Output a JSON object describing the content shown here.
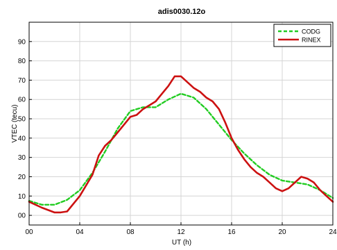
{
  "chart_data": {
    "type": "line",
    "title": "adis0030.12o",
    "xlabel": "UT (h)",
    "ylabel": "VTEC (tecu)",
    "xlim": [
      0,
      24
    ],
    "ylim": [
      -5,
      100
    ],
    "x_ticks": [
      0,
      4,
      8,
      12,
      16,
      20,
      24
    ],
    "x_tick_labels": [
      "00",
      "04",
      "08",
      "12",
      "16",
      "20",
      "24"
    ],
    "y_ticks": [
      0,
      10,
      20,
      30,
      40,
      50,
      60,
      70,
      80,
      90
    ],
    "y_tick_labels": [
      "00",
      "10",
      "20",
      "30",
      "40",
      "50",
      "60",
      "70",
      "80",
      "90"
    ],
    "grid": true,
    "legend_position": "top-right",
    "series": [
      {
        "name": "CODG",
        "color": "#22cc22",
        "style": "dashed",
        "x": [
          0,
          1,
          2,
          3,
          4,
          5,
          6,
          7,
          8,
          9,
          10,
          11,
          12,
          13,
          14,
          15,
          16,
          17,
          18,
          19,
          20,
          21,
          22,
          23,
          24
        ],
        "y": [
          7.5,
          5.5,
          5.5,
          8,
          13,
          22,
          33,
          45,
          54,
          56,
          56,
          60,
          63,
          61,
          55,
          47,
          39,
          32,
          26,
          21,
          18,
          17,
          16,
          13,
          9
        ]
      },
      {
        "name": "RINEX",
        "color": "#cc1111",
        "style": "solid",
        "x": [
          0,
          1,
          2,
          2.5,
          3,
          4,
          5,
          5.5,
          6,
          6.5,
          7,
          7.5,
          8,
          8.5,
          9,
          9.5,
          10,
          10.5,
          11,
          11.5,
          12,
          12.5,
          13,
          13.5,
          14,
          14.5,
          15,
          15.5,
          16,
          16.5,
          17,
          17.5,
          18,
          18.5,
          19,
          19.5,
          20,
          20.5,
          21,
          21.5,
          22,
          22.5,
          23,
          23.5,
          24
        ],
        "y": [
          7,
          4,
          1.5,
          1.5,
          2,
          10,
          21,
          31,
          36,
          39,
          43,
          47,
          51,
          52,
          55,
          57,
          59,
          63,
          67,
          72,
          72,
          69,
          66,
          64,
          61,
          59,
          55,
          48,
          40,
          34,
          29,
          25,
          22,
          20,
          17,
          14,
          12.5,
          14,
          17,
          20,
          19,
          17,
          13,
          10,
          7
        ]
      }
    ]
  }
}
